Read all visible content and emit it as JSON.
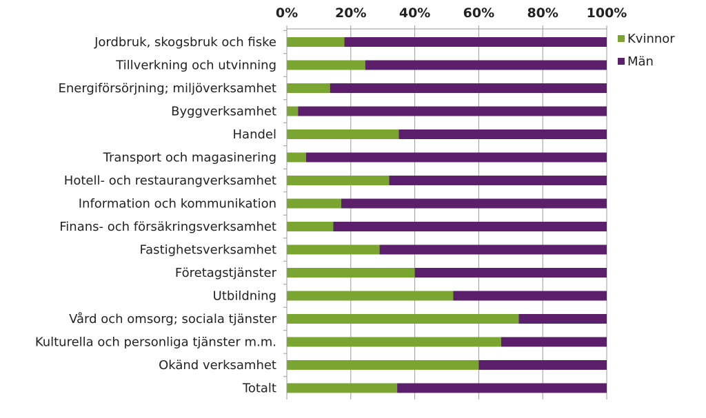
{
  "chart_data": {
    "type": "bar",
    "orientation": "horizontal",
    "stacked": "percent",
    "categories": [
      "Jordbruk, skogsbruk och fiske",
      "Tillverkning och utvinning",
      "Energiförsörjning; miljöverksamhet",
      "Byggverksamhet",
      "Handel",
      "Transport och magasinering",
      "Hotell- och restaurangverksamhet",
      "Information och kommunikation",
      "Finans- och försäkringsverksamhet",
      "Fastighetsverksamhet",
      "Företagstjänster",
      "Utbildning",
      "Vård och omsorg; sociala tjänster",
      "Kulturella och personliga tjänster m.m.",
      "Okänd verksamhet",
      "Totalt"
    ],
    "series": [
      {
        "name": "Kvinnor",
        "color": "#7aa530",
        "values": [
          18,
          24.5,
          13.5,
          3.5,
          35,
          6,
          32,
          17,
          14.5,
          29,
          40,
          52,
          72.5,
          67,
          60,
          34.5
        ]
      },
      {
        "name": "Män",
        "color": "#5c1f6c",
        "values": [
          82,
          75.5,
          86.5,
          96.5,
          65,
          94,
          68,
          83,
          85.5,
          71,
          60,
          48,
          27.5,
          33,
          40,
          65.5
        ]
      }
    ],
    "xlim": [
      0,
      100
    ],
    "x_ticks": [
      "0%",
      "20%",
      "40%",
      "60%",
      "80%",
      "100%"
    ],
    "x_axis_position": "top",
    "grid": true,
    "legend_position": "right-top"
  }
}
